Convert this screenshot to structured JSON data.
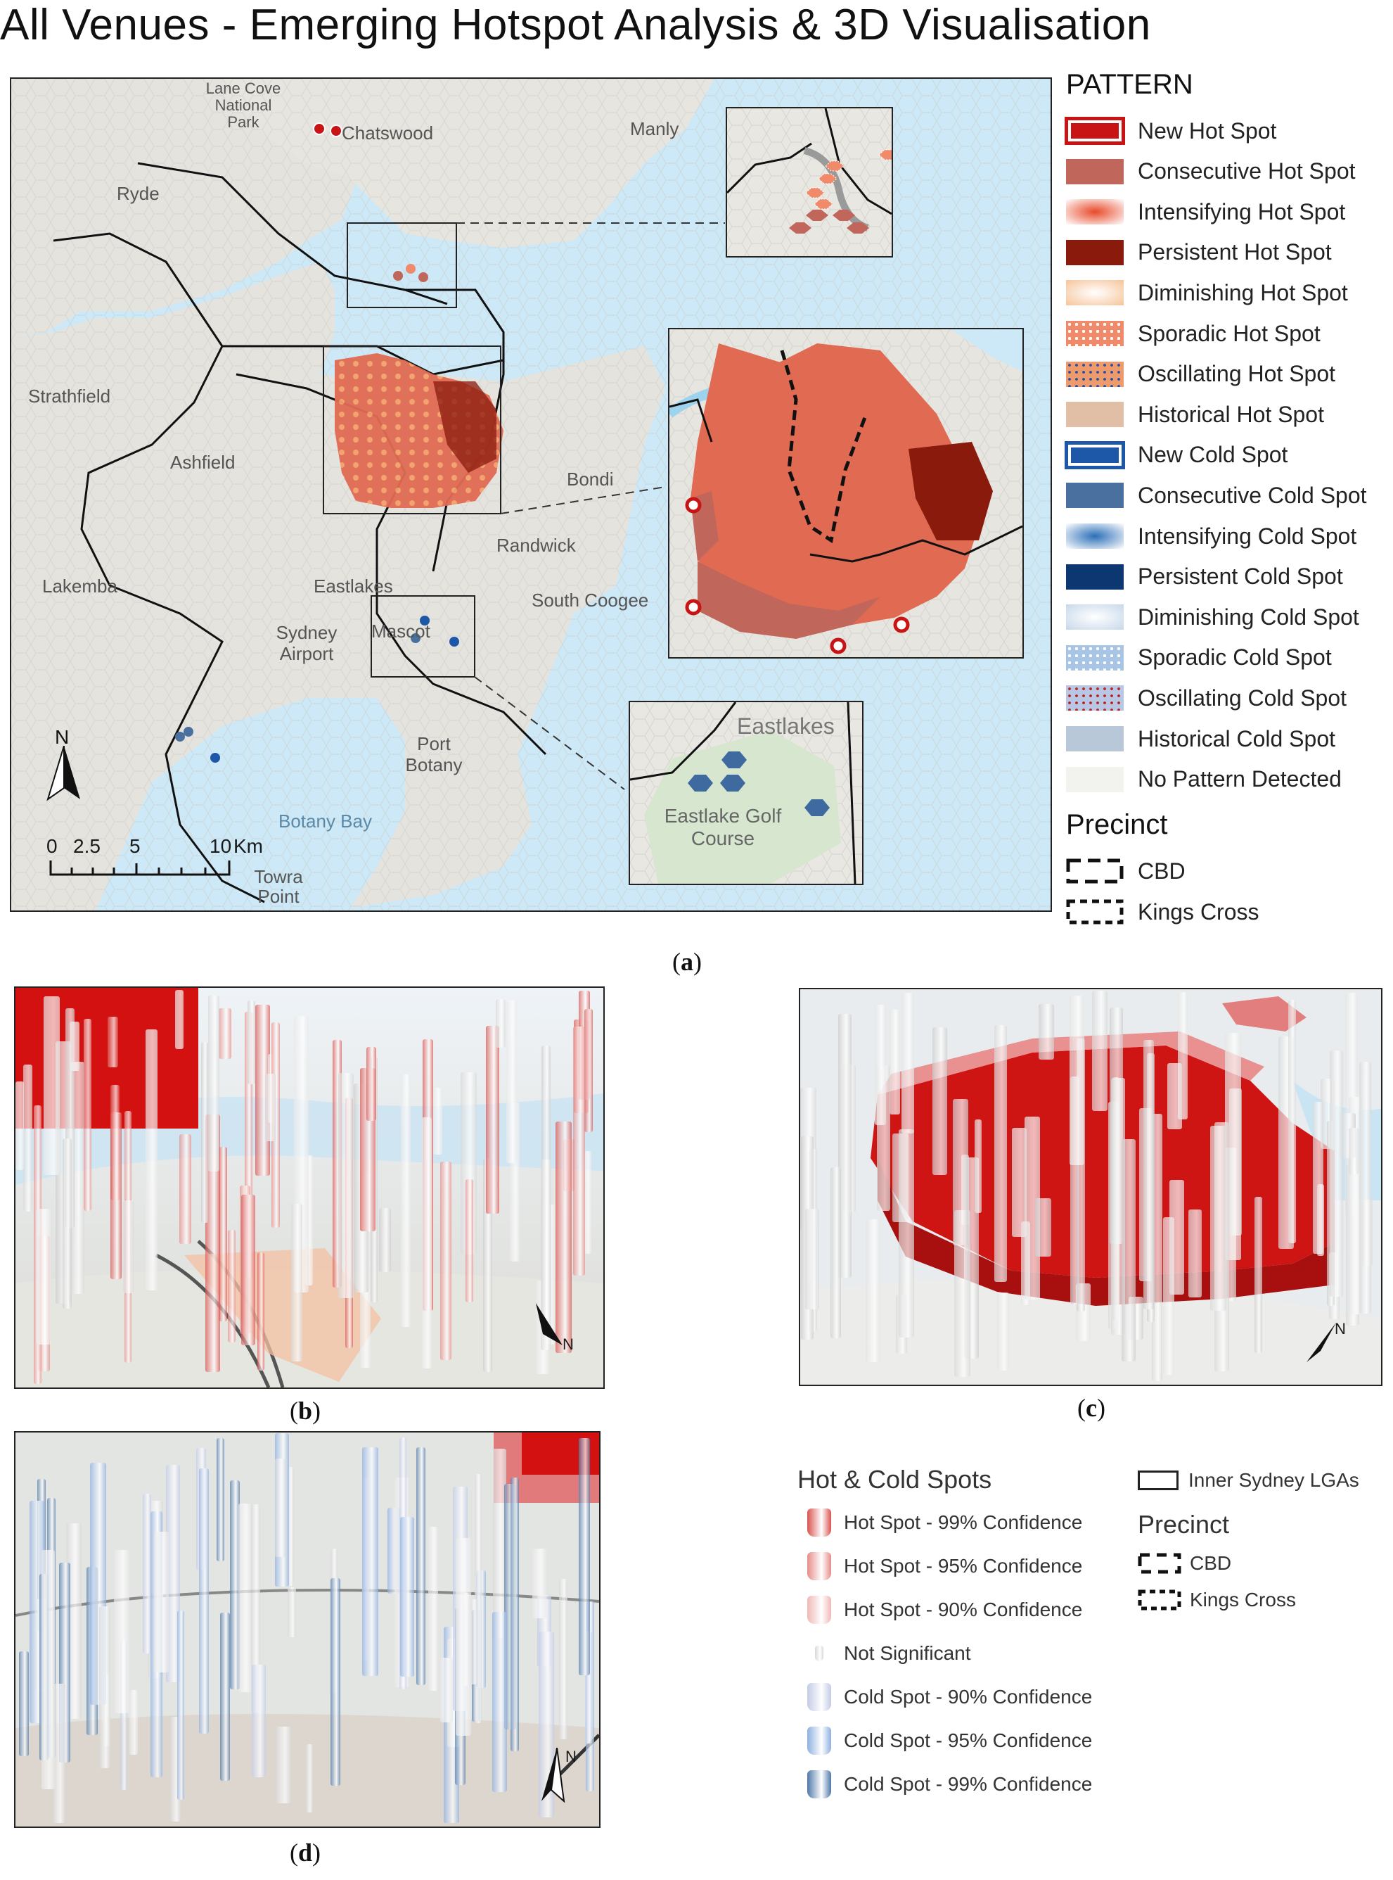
{
  "title": "All Venues - Emerging Hotspot Analysis & 3D Visualisation",
  "legend_pattern": {
    "heading": "PATTERN",
    "items": [
      {
        "label": "New Hot Spot",
        "color": "#c81414",
        "style": "outlined"
      },
      {
        "label": "Consecutive Hot Spot",
        "color": "#c0665a",
        "style": "solid"
      },
      {
        "label": "Intensifying Hot Spot",
        "color": "#e84a2a",
        "style": "radial"
      },
      {
        "label": "Persistent Hot Spot",
        "color": "#8a1a0c",
        "style": "solid"
      },
      {
        "label": "Diminishing Hot Spot",
        "color": "#f6c49a",
        "style": "radial-light"
      },
      {
        "label": "Sporadic Hot Spot",
        "color": "#f08a6a",
        "style": "dots-white"
      },
      {
        "label": "Oscillating Hot Spot",
        "color": "#ee9a6a",
        "style": "dots-blue"
      },
      {
        "label": "Historical Hot Spot",
        "color": "#e0bfa6",
        "style": "solid"
      },
      {
        "label": "New Cold Spot",
        "color": "#1d57a8",
        "style": "outlined"
      },
      {
        "label": "Consecutive Cold Spot",
        "color": "#4a70a0",
        "style": "solid"
      },
      {
        "label": "Intensifying Cold Spot",
        "color": "#2c6fb8",
        "style": "radial"
      },
      {
        "label": "Persistent Cold Spot",
        "color": "#0d3770",
        "style": "solid"
      },
      {
        "label": "Diminishing Cold Spot",
        "color": "#c7d8ea",
        "style": "radial-light"
      },
      {
        "label": "Sporadic Cold Spot",
        "color": "#a9c5e6",
        "style": "dots-white"
      },
      {
        "label": "Oscillating Cold Spot",
        "color": "#b7c7e4",
        "style": "dots-red"
      },
      {
        "label": "Historical Cold Spot",
        "color": "#b8c8d8",
        "style": "solid"
      },
      {
        "label": "No Pattern Detected",
        "color": "#f2f2ee",
        "style": "solid"
      }
    ]
  },
  "legend_precinct": {
    "heading": "Precinct",
    "items": [
      {
        "label": "CBD"
      },
      {
        "label": "Kings Cross"
      }
    ]
  },
  "map_a": {
    "place_labels": [
      "Lane Cove National Park",
      "Chatswood",
      "Manly",
      "Ryde",
      "Strathfield",
      "Ashfield",
      "Bondi",
      "Randwick",
      "Lakemba",
      "Eastlakes",
      "Sydney Airport",
      "Mascot",
      "South Coogee",
      "Port Botany",
      "Botany Bay",
      "Towra Point"
    ],
    "inset_labels": [
      "Eastlakes",
      "Eastlake Golf Course"
    ],
    "scale": {
      "ticks": [
        "0",
        "2.5",
        "5",
        "10"
      ],
      "unit": "Km"
    },
    "north": "N"
  },
  "captions": {
    "a": "a",
    "b": "b",
    "c": "c",
    "d": "d"
  },
  "legend_3d": {
    "heading": "Hot & Cold Spots",
    "items": [
      {
        "label": "Hot Spot - 99% Confidence",
        "color": "#d9534f"
      },
      {
        "label": "Hot Spot - 95% Confidence",
        "color": "#e58c89"
      },
      {
        "label": "Hot Spot - 90% Confidence",
        "color": "#f0b8b6"
      },
      {
        "label": "Not Significant",
        "color": "#d8d8d8"
      },
      {
        "label": "Cold Spot - 90% Confidence",
        "color": "#c3cbe6"
      },
      {
        "label": "Cold Spot - 95% Confidence",
        "color": "#8fb0e0"
      },
      {
        "label": "Cold Spot - 99% Confidence",
        "color": "#4f78a8"
      }
    ],
    "lga_label": "Inner Sydney LGAs",
    "precinct_heading": "Precinct",
    "precinct_items": [
      "CBD",
      "Kings Cross"
    ]
  },
  "north_labels": {
    "b": "N",
    "c": "N",
    "d": "N"
  }
}
